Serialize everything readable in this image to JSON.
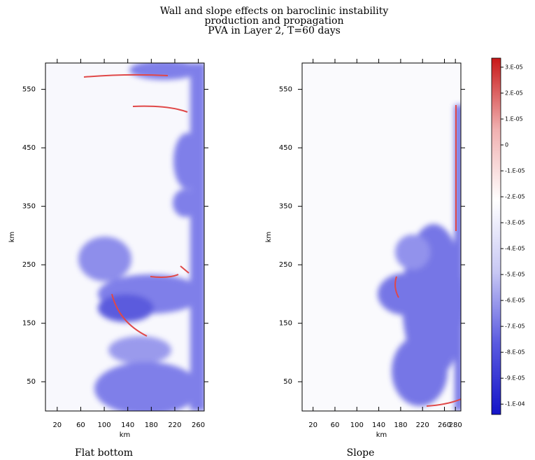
{
  "figure": {
    "title": [
      "Wall and slope effects on baroclinic instability",
      "production and propagation",
      "PVA in Layer 2, T=60 days"
    ]
  },
  "chart_data": [
    {
      "type": "heatmap",
      "caption": "Flat bottom",
      "xlabel": "km",
      "ylabel": "km",
      "xlim": [
        0,
        270
      ],
      "xticks": [
        20,
        60,
        100,
        140,
        180,
        220,
        260
      ],
      "ylim": [
        0,
        595
      ],
      "yticks": [
        50,
        150,
        250,
        350,
        450,
        550
      ]
    },
    {
      "type": "heatmap",
      "caption": "Slope",
      "xlabel": "km",
      "ylabel": "km",
      "xlim": [
        0,
        290
      ],
      "xticks": [
        20,
        60,
        100,
        140,
        180,
        220,
        260,
        280
      ],
      "ylim": [
        0,
        595
      ],
      "yticks": [
        50,
        150,
        250,
        350,
        450,
        550
      ]
    }
  ],
  "colorbar": {
    "clim": [
      -0.000104,
      3.35e-05
    ],
    "colors": [
      "#1515c8",
      "#5a5ae0",
      "#c8c8f4",
      "#ffffff",
      "#f0b0b0",
      "#c81818"
    ],
    "ticks": [
      {
        "value": 3e-05,
        "label": "3.E-05"
      },
      {
        "value": 2e-05,
        "label": "2.E-05"
      },
      {
        "value": 1e-05,
        "label": "1.E-05"
      },
      0,
      {
        "value": -1e-05,
        "label": "-1.E-05"
      },
      {
        "value": -2e-05,
        "label": "-2.E-05"
      },
      {
        "value": -3e-05,
        "label": "-3.E-05"
      },
      {
        "value": -4e-05,
        "label": "-4.E-05"
      },
      {
        "value": -5e-05,
        "label": "-5.E-05"
      },
      {
        "value": -6e-05,
        "label": "-6.E-05"
      },
      {
        "value": -7e-05,
        "label": "-7.E-05"
      },
      {
        "value": -8e-05,
        "label": "-8.E-05"
      },
      {
        "value": -9e-05,
        "label": "-9.E-05"
      },
      {
        "value": -0.0001,
        "label": "-1.E-04"
      }
    ]
  }
}
